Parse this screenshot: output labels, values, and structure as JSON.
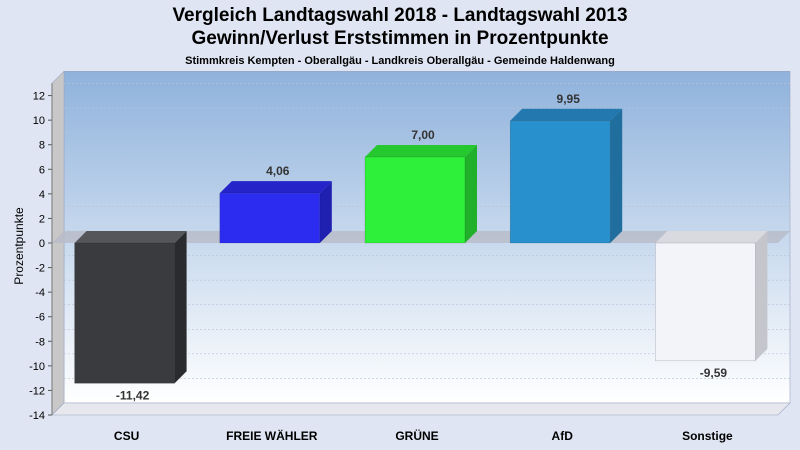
{
  "chart_data": {
    "type": "bar",
    "title": "Vergleich Landtagswahl 2018 - Landtagswahl 2013",
    "subtitle": "Gewinn/Verlust Erststimmen in Prozentpunkte",
    "subsubtitle": "Stimmkreis Kempten - Oberallgäu - Landkreis Oberallgäu - Gemeinde Haldenwang",
    "ylabel": "Prozentpunkte",
    "xlabel": "",
    "ylim": [
      -14,
      13
    ],
    "yticks": [
      12,
      10,
      8,
      6,
      4,
      2,
      0,
      -2,
      -4,
      -6,
      -8,
      -10,
      -12,
      -14
    ],
    "ytick_labels": [
      "12",
      "10",
      "8",
      "6",
      "4",
      "2",
      "0",
      "-2",
      "-4",
      "-6",
      "-8",
      "-10",
      "-12",
      "-14"
    ],
    "categories": [
      "CSU",
      "FREIE WÄHLER",
      "GRÜNE",
      "AfD",
      "Sonstige"
    ],
    "values": [
      -11.42,
      4.06,
      7.0,
      9.95,
      -9.59
    ],
    "value_labels": [
      "-11,42",
      "4,06",
      "7,00",
      "9,95",
      "-9,59"
    ],
    "colors": [
      "#3a3b3e",
      "#2c2cf0",
      "#2ef03a",
      "#2890cc",
      "#f2f4fa"
    ],
    "side_colors": [
      "#2a2b2e",
      "#1f1fb0",
      "#20b02a",
      "#1f6e9e",
      "#c4c6cc"
    ],
    "top_colors": [
      "#55565a",
      "#2424c8",
      "#26c830",
      "#2478b0",
      "#d8dae0"
    ],
    "grid": true,
    "legend": "none",
    "theme": {
      "page_bg": "#dfe5f2",
      "plot_bg_top": "#8fb2dc",
      "plot_bg_bottom": "#ffffff",
      "wall_side": "#c8c8c8",
      "zero_plane": "#b9bcc8"
    }
  }
}
